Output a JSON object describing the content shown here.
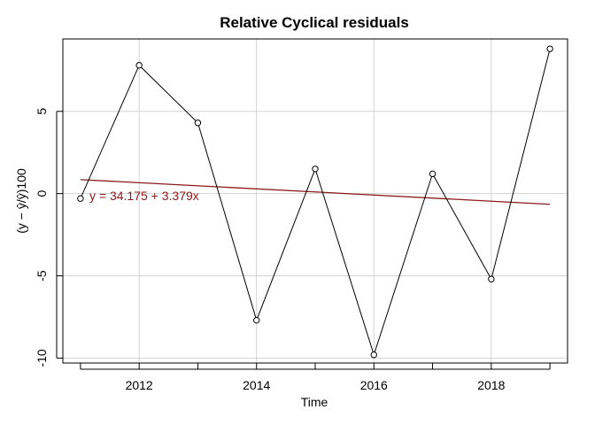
{
  "chart_data": {
    "type": "line",
    "title": "Relative Cyclical residuals",
    "xlabel": "Time",
    "ylabel": "(y − ŷ/ŷ)100",
    "xlim": [
      2010.7,
      2019.3
    ],
    "ylim": [
      -10.3,
      9.4
    ],
    "x_ticks": [
      2012,
      2014,
      2016,
      2018
    ],
    "y_ticks": [
      -10,
      -5,
      0,
      5
    ],
    "grid": true,
    "series": [
      {
        "x": [
          2011,
          2012,
          2013,
          2014,
          2015,
          2016,
          2017,
          2018,
          2019
        ],
        "values": [
          -0.3,
          7.8,
          4.3,
          -7.7,
          1.5,
          -9.8,
          1.2,
          -5.2,
          8.8
        ],
        "color": "#000000",
        "marker": "open-circle"
      }
    ],
    "trend_line": {
      "label": "y = 34.175 + 3.379x",
      "x": [
        2011,
        2019
      ],
      "values": [
        0.85,
        -0.65
      ],
      "color": "#8b1a1a"
    }
  }
}
